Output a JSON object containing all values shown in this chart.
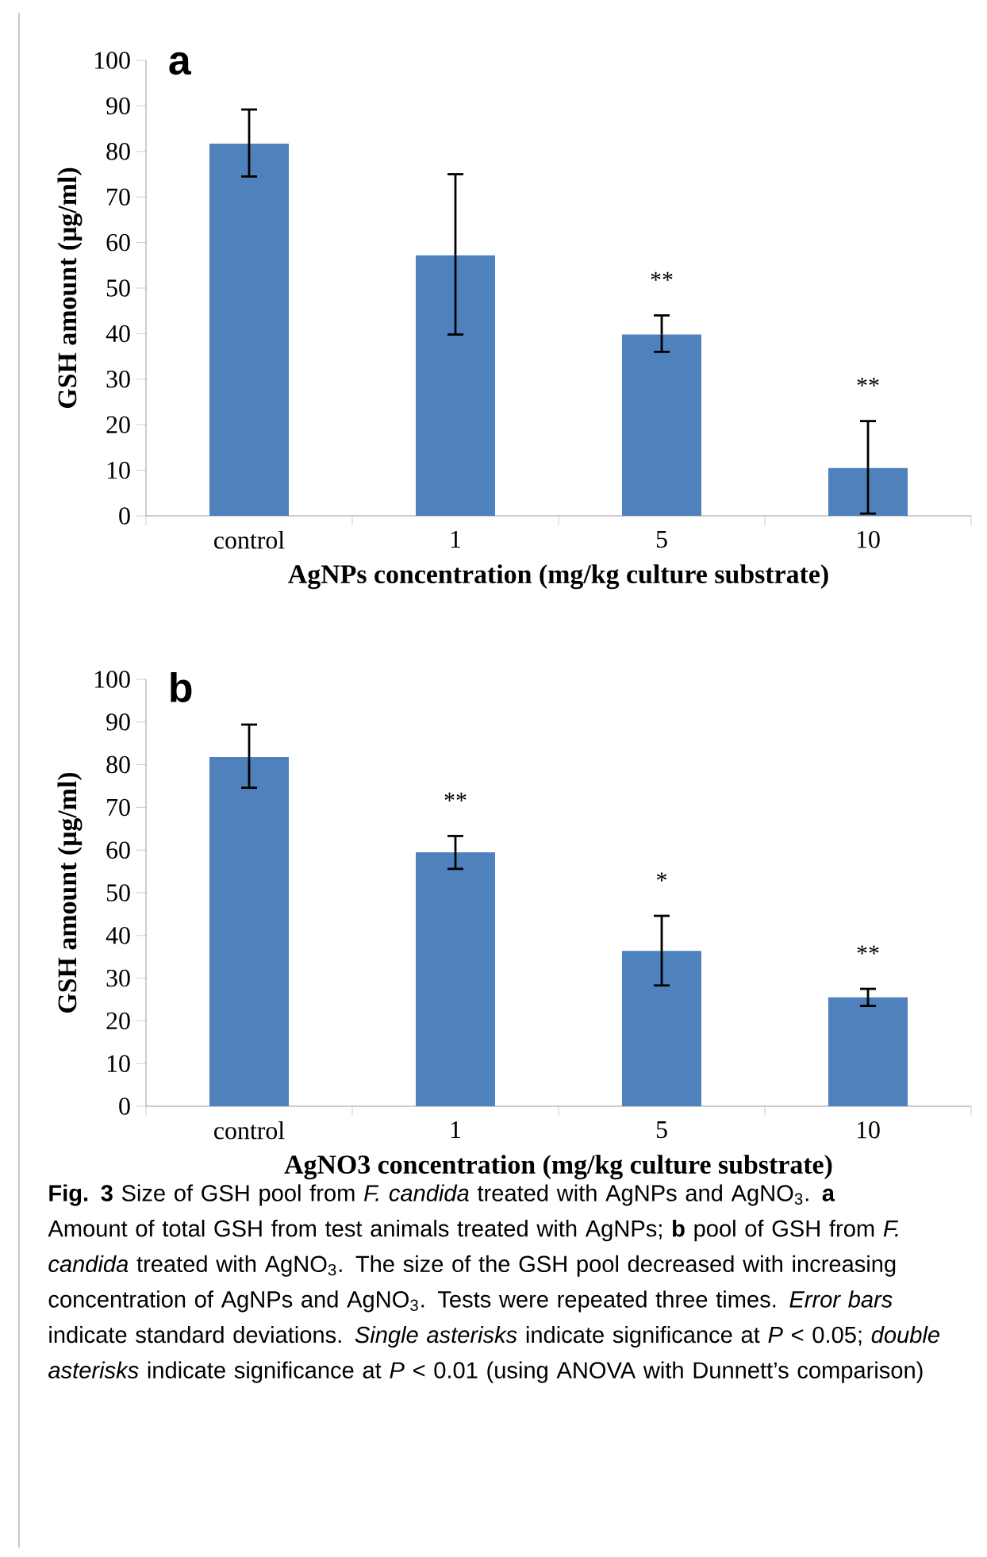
{
  "chart_data": [
    {
      "type": "bar",
      "title": "a",
      "categories": [
        "control",
        "1",
        "5",
        "10"
      ],
      "values": [
        81.7,
        57.2,
        39.8,
        10.5
      ],
      "color": "#4f81bd",
      "errors": [
        [
          74.5,
          89.2
        ],
        [
          39.8,
          75.0
        ],
        [
          36.0,
          44.0
        ],
        [
          0.5,
          20.8
        ]
      ],
      "xlabel": "AgNPs concentration (mg/kg culture substrate)",
      "ylabel": "GSH amount (μg/ml)",
      "ylim": [
        0,
        100
      ],
      "yticks": [
        0,
        10,
        20,
        30,
        40,
        50,
        60,
        70,
        80,
        90,
        100
      ],
      "annotations": [
        {
          "text": "**",
          "x": "5",
          "y": 44.0
        },
        {
          "text": "**",
          "x": "10",
          "y": 20.8
        }
      ]
    },
    {
      "type": "bar",
      "title": "b",
      "categories": [
        "control",
        "1",
        "5",
        "10"
      ],
      "values": [
        81.8,
        59.5,
        36.4,
        25.5
      ],
      "color": "#4f81bd",
      "errors": [
        [
          74.6,
          89.4
        ],
        [
          55.6,
          63.3
        ],
        [
          28.3,
          44.6
        ],
        [
          23.5,
          27.5
        ]
      ],
      "xlabel": "AgNO3 concentration (mg/kg culture substrate)",
      "ylabel": "GSH amount (μg/ml)",
      "ylim": [
        0,
        100
      ],
      "yticks": [
        0,
        10,
        20,
        30,
        40,
        50,
        60,
        70,
        80,
        90,
        100
      ],
      "annotations": [
        {
          "text": "**",
          "x": "1",
          "y": 63.3
        },
        {
          "text": "*",
          "x": "5",
          "y": 44.6
        },
        {
          "text": "**",
          "x": "10",
          "y": 27.5
        },
        "**Fig. 3**  Size of GSH pool from *F. candida* treated with AgNPs and AgNO$_{3}$. **a** Amount of total GSH from test animals treated with AgNPs; **b** pool of GSH from *F. candida* treated with AgNO$_{3}$. The size of the GSH pool decreased with increasing concentration of AgNPs and AgNO$_{3}$. Tests were repeated three times. *Error bars* indicate standard deviations. *Single asterisks* indicate significance at *P* < 0.05; *double asterisks* indicate significance at *P* < 0.01 (using ANOVA with Dunnett’s comparison)"
      ]
    }
  ]
}
